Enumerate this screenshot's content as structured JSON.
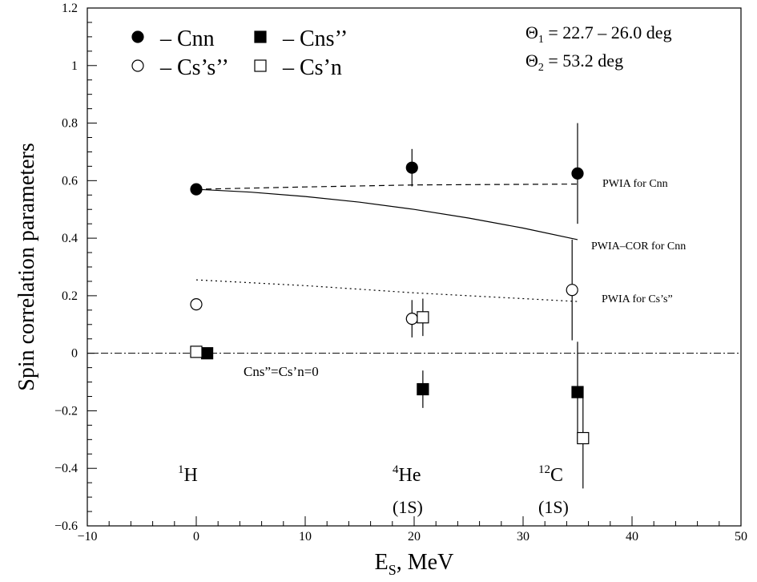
{
  "chart_data": {
    "type": "scatter",
    "xlabel": "E",
    "xlabel_sub": "S",
    "xlabel_unit": ", MeV",
    "ylabel": "Spin correlation parameters",
    "xlim": [
      -10,
      50
    ],
    "ylim": [
      -0.6,
      1.2
    ],
    "x_ticks": [
      -10,
      0,
      10,
      20,
      30,
      40,
      50
    ],
    "y_ticks": [
      -0.6,
      -0.4,
      -0.2,
      0,
      0.2,
      0.4,
      0.6,
      0.8,
      1,
      1.2
    ],
    "x_tick_labels": [
      "−10",
      "0",
      "10",
      "20",
      "30",
      "40",
      "50"
    ],
    "y_tick_labels": [
      "−0.6",
      "−0.4",
      "−0.2",
      "0",
      "0.2",
      "0.4",
      "0.6",
      "0.8",
      "1",
      "1.2"
    ],
    "grid": false,
    "legend_placement": "top-left",
    "legend": [
      {
        "marker": "filled-circle",
        "label": "– Cnn"
      },
      {
        "marker": "filled-square",
        "label": "– Cns’’"
      },
      {
        "marker": "open-circle",
        "label": "– Cs’s’’"
      },
      {
        "marker": "open-square",
        "label": "– Cs’n"
      }
    ],
    "parameters": [
      {
        "symbol": "Θ",
        "sub": "1",
        "text": " = 22.7 – 26.0 deg"
      },
      {
        "symbol": "Θ",
        "sub": "2",
        "text": " = 53.2 deg"
      }
    ],
    "series": [
      {
        "marker": "filled-circle",
        "points": [
          {
            "x": 0,
            "y": 0.57,
            "err": 0.008
          },
          {
            "x": 19.8,
            "y": 0.645,
            "err": 0.065
          },
          {
            "x": 35.0,
            "y": 0.625,
            "err": 0.175
          }
        ]
      },
      {
        "marker": "filled-square",
        "points": [
          {
            "x": 1.0,
            "y": 0.0,
            "err": 0.004
          },
          {
            "x": 20.8,
            "y": -0.125,
            "err": 0.065
          },
          {
            "x": 35.0,
            "y": -0.135,
            "err": 0.175
          }
        ]
      },
      {
        "marker": "open-circle",
        "points": [
          {
            "x": 0,
            "y": 0.17,
            "err": 0.012
          },
          {
            "x": 19.8,
            "y": 0.12,
            "err": 0.065
          },
          {
            "x": 34.5,
            "y": 0.22,
            "err": 0.175
          }
        ]
      },
      {
        "marker": "open-square",
        "points": [
          {
            "x": 0,
            "y": 0.005,
            "err": 0.012
          },
          {
            "x": 20.8,
            "y": 0.125,
            "err": 0.065
          },
          {
            "x": 35.5,
            "y": -0.295,
            "err": 0.175
          }
        ]
      }
    ],
    "curves": [
      {
        "label": "PWIA for Cnn",
        "style": "dashed",
        "x": [
          0,
          10,
          20,
          35
        ],
        "y": [
          0.57,
          0.578,
          0.585,
          0.588
        ]
      },
      {
        "label": "PWIA–COR for Cnn",
        "style": "solid",
        "x": [
          0,
          5,
          10,
          15,
          20,
          25,
          30,
          35
        ],
        "y": [
          0.57,
          0.56,
          0.545,
          0.525,
          0.5,
          0.47,
          0.435,
          0.395
        ]
      },
      {
        "label": "PWIA for Cs’s”",
        "style": "dotted",
        "x": [
          0,
          10,
          20,
          35
        ],
        "y": [
          0.255,
          0.235,
          0.21,
          0.18
        ]
      }
    ],
    "reference_line": {
      "y": 0,
      "style": "dash-dot"
    },
    "annotations": [
      {
        "text": "Cns”=Cs’n=0"
      }
    ],
    "nuclei": [
      {
        "mass": "1",
        "element": "H",
        "state": ""
      },
      {
        "mass": "4",
        "element": "He",
        "state": "(1S)"
      },
      {
        "mass": "12",
        "element": "C",
        "state": "(1S)"
      }
    ]
  }
}
